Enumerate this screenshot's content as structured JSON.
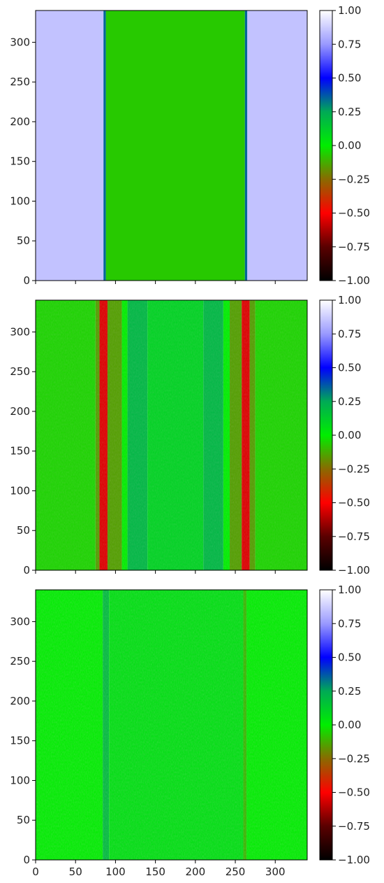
{
  "chart_data": [
    {
      "type": "heatmap",
      "panel": "top",
      "x_range": [
        0,
        340
      ],
      "y_range": [
        0,
        340
      ],
      "yticks": [
        "0",
        "50",
        "100",
        "150",
        "200",
        "250",
        "300"
      ],
      "xticks_labeled": false,
      "colorbar": {
        "range": [
          -1.0,
          1.0
        ],
        "ticks": [
          "1.00",
          "0.75",
          "0.50",
          "0.25",
          "0.00",
          "−0.25",
          "−0.50",
          "−0.75",
          "−1.00"
        ]
      },
      "regions": [
        {
          "x_from": 0,
          "x_to": 85,
          "value": 0.85
        },
        {
          "x_from": 85,
          "x_to": 88,
          "value": 0.35
        },
        {
          "x_from": 88,
          "x_to": 262,
          "value": -0.07
        },
        {
          "x_from": 262,
          "x_to": 265,
          "value": 0.35
        },
        {
          "x_from": 265,
          "x_to": 340,
          "value": 0.85
        }
      ]
    },
    {
      "type": "heatmap",
      "panel": "middle",
      "x_range": [
        0,
        340
      ],
      "y_range": [
        0,
        340
      ],
      "yticks": [
        "0",
        "50",
        "100",
        "150",
        "200",
        "250",
        "300"
      ],
      "xticks_labeled": false,
      "colorbar": {
        "range": [
          -1.0,
          1.0
        ],
        "ticks": [
          "1.00",
          "0.75",
          "0.50",
          "0.25",
          "0.00",
          "−0.25",
          "−0.50",
          "−0.75",
          "−1.00"
        ]
      },
      "regions": [
        {
          "x_from": 0,
          "x_to": 75,
          "value": -0.05
        },
        {
          "x_from": 75,
          "x_to": 80,
          "value": -0.15
        },
        {
          "x_from": 80,
          "x_to": 90,
          "value": -0.55
        },
        {
          "x_from": 90,
          "x_to": 108,
          "value": -0.15
        },
        {
          "x_from": 108,
          "x_to": 115,
          "value": 0.0
        },
        {
          "x_from": 115,
          "x_to": 140,
          "value": 0.2
        },
        {
          "x_from": 140,
          "x_to": 210,
          "value": 0.1
        },
        {
          "x_from": 210,
          "x_to": 235,
          "value": 0.2
        },
        {
          "x_from": 235,
          "x_to": 243,
          "value": 0.0
        },
        {
          "x_from": 243,
          "x_to": 258,
          "value": -0.15
        },
        {
          "x_from": 258,
          "x_to": 268,
          "value": -0.55
        },
        {
          "x_from": 268,
          "x_to": 275,
          "value": -0.15
        },
        {
          "x_from": 275,
          "x_to": 340,
          "value": -0.05
        }
      ]
    },
    {
      "type": "heatmap",
      "panel": "bottom",
      "x_range": [
        0,
        340
      ],
      "y_range": [
        0,
        340
      ],
      "yticks": [
        "0",
        "50",
        "100",
        "150",
        "200",
        "250",
        "300"
      ],
      "xticks": [
        "0",
        "50",
        "100",
        "150",
        "200",
        "250",
        "300"
      ],
      "colorbar": {
        "range": [
          -1.0,
          1.0
        ],
        "ticks": [
          "1.00",
          "0.75",
          "0.50",
          "0.25",
          "0.00",
          "−0.25",
          "−0.50",
          "−0.75",
          "−1.00"
        ]
      },
      "regions": [
        {
          "x_from": 0,
          "x_to": 84,
          "value": 0.0
        },
        {
          "x_from": 84,
          "x_to": 92,
          "value": 0.18
        },
        {
          "x_from": 92,
          "x_to": 260,
          "value": 0.05
        },
        {
          "x_from": 260,
          "x_to": 264,
          "value": -0.1
        },
        {
          "x_from": 264,
          "x_to": 340,
          "value": 0.0
        }
      ]
    }
  ]
}
